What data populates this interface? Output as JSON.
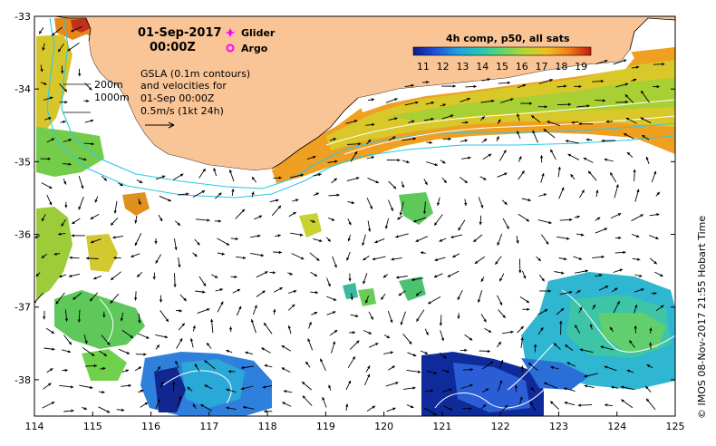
{
  "map": {
    "date": "01-Sep-2017",
    "time": "00:00Z",
    "legend": {
      "glider": "Glider",
      "argo": "Argo"
    },
    "description_lines": [
      "GSLA (0.1m contours)",
      "and velocities for",
      "01-Sep 00:00Z",
      "0.5m/s (1kt 24h)"
    ],
    "isobath_labels": [
      "200m",
      "1000m"
    ],
    "colorbar": {
      "title": "4h comp, p50, all sats",
      "ticks": [
        "11",
        "12",
        "13",
        "14",
        "15",
        "16",
        "17",
        "18",
        "19"
      ],
      "range": [
        10.5,
        19.5
      ],
      "colors": [
        "#0b1b8c",
        "#1f4fd6",
        "#1f9fe0",
        "#25c8b8",
        "#5fd66b",
        "#b4d633",
        "#f0c020",
        "#f07a16",
        "#c01a0c"
      ]
    },
    "credit": "© IMOS 08-Nov-2017 21:55 Hobart Time",
    "x_ticks": [
      "114",
      "115",
      "116",
      "117",
      "118",
      "119",
      "120",
      "121",
      "122",
      "123",
      "124",
      "125"
    ],
    "y_ticks": [
      "-33",
      "-34",
      "-35",
      "-36",
      "-37",
      "-38"
    ],
    "lon_range": [
      114,
      125
    ],
    "lat_range": [
      -38.5,
      -33
    ],
    "land_color": "#f9c596"
  }
}
